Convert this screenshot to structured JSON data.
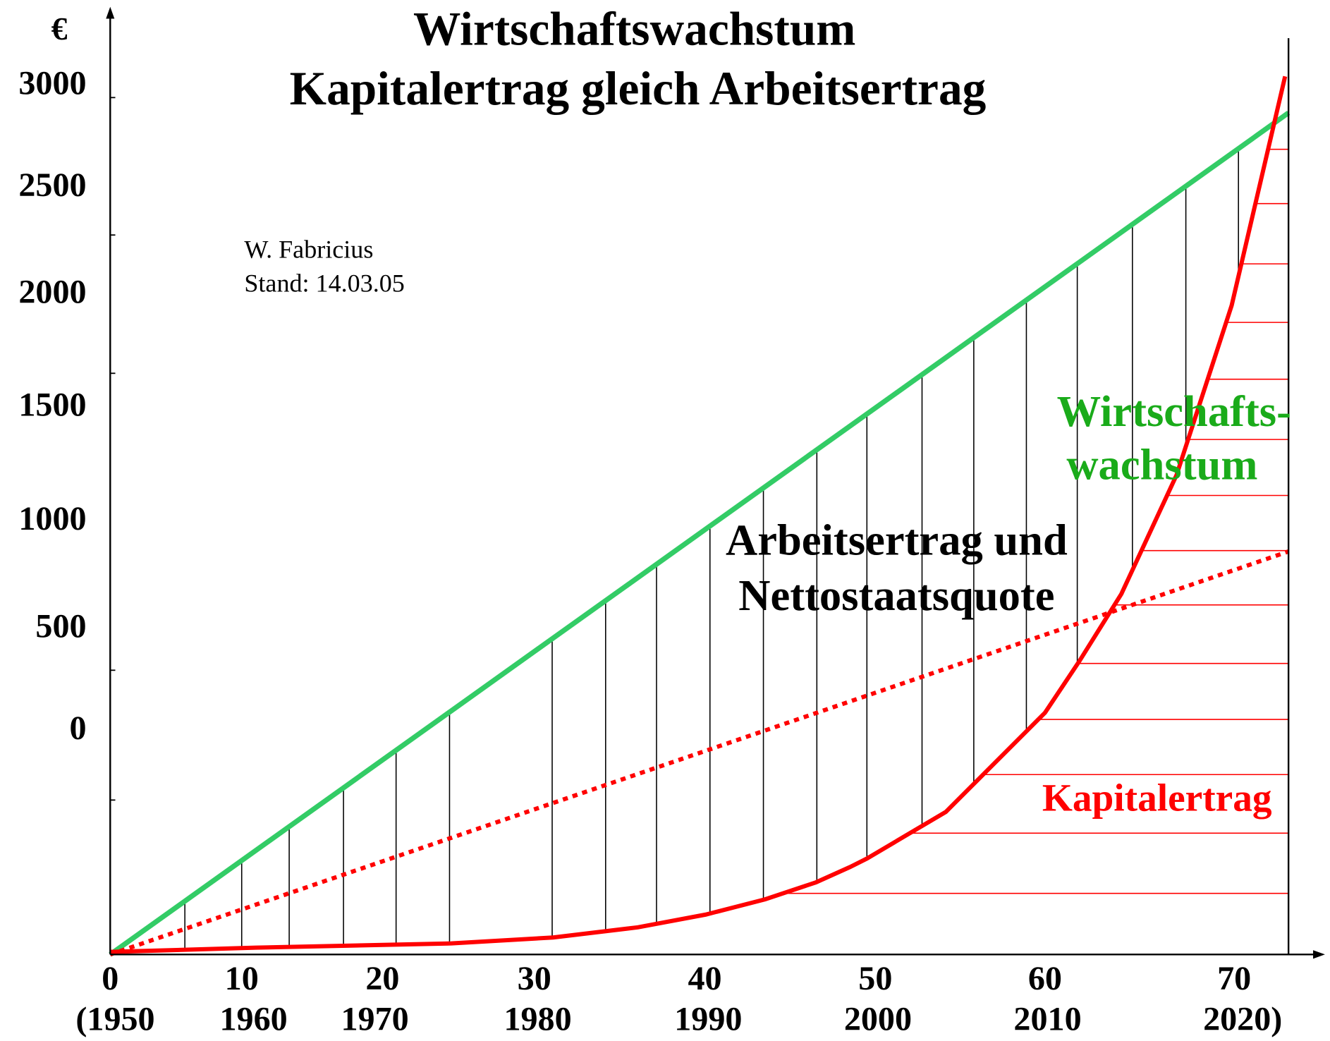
{
  "title": [
    "Wirtschaftswachstum",
    "Kapitalertrag gleich Arbeitsertrag"
  ],
  "y_axis": {
    "unit": "€",
    "labels": [
      "3000",
      "2500",
      "2000",
      "1500",
      "1000",
      "500",
      "0"
    ]
  },
  "x_axis": {
    "labels": [
      [
        "0",
        "(1950"
      ],
      [
        "10",
        "1960"
      ],
      [
        "20",
        "1970"
      ],
      [
        "30",
        "1980"
      ],
      [
        "40",
        "1990"
      ],
      [
        "50",
        "2000"
      ],
      [
        "60",
        "2010"
      ],
      [
        "70",
        "2020)"
      ]
    ]
  },
  "author": "W. Fabricius",
  "date": "Stand: 14.03.05",
  "labels": {
    "middle": [
      "Arbeitsertrag und",
      "Nettostaatsquote"
    ],
    "green": [
      "Wirtschafts-",
      "wachstum"
    ],
    "red": "Kapitalertrag"
  }
}
